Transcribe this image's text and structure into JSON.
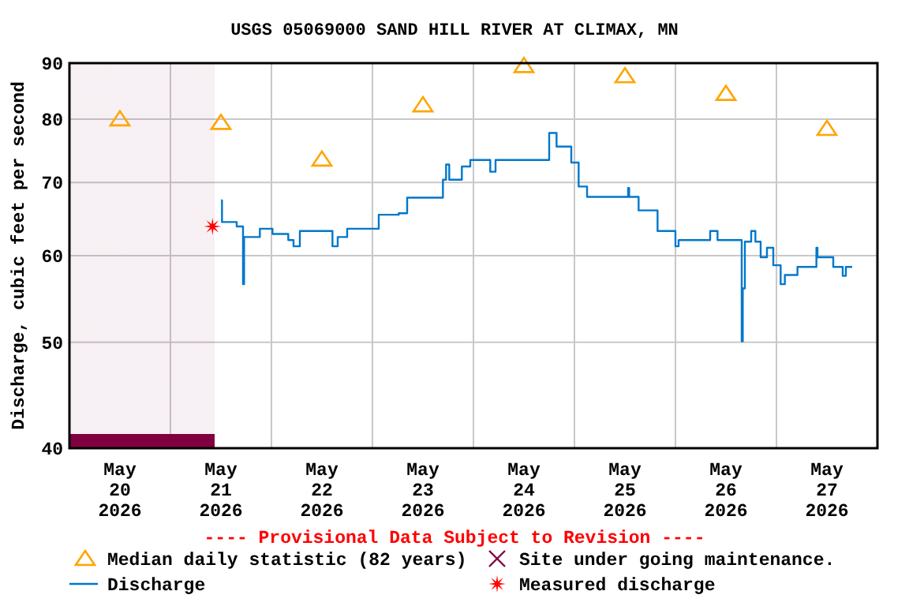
{
  "chart_data": {
    "type": "line",
    "title": "USGS 05069000 SAND HILL RIVER AT CLIMAX, MN",
    "ylabel": "Discharge, cubic feet per second",
    "annotations": [
      "---- Provisional Data Subject to Revision ----"
    ],
    "log": "y",
    "grid": true,
    "legend": "bottom",
    "xlim": [
      "2026-05-20T00:00",
      "2026-05-28T00:00"
    ],
    "xticks": [
      {
        "value": "2026-05-20T12:00",
        "label": "May\n20\n2026"
      },
      {
        "value": "2026-05-21T12:00",
        "label": "May\n21\n2026"
      },
      {
        "value": "2026-05-22T12:00",
        "label": "May\n22\n2026"
      },
      {
        "value": "2026-05-23T12:00",
        "label": "May\n23\n2026"
      },
      {
        "value": "2026-05-24T12:00",
        "label": "May\n24\n2026"
      },
      {
        "value": "2026-05-25T12:00",
        "label": "May\n25\n2026"
      },
      {
        "value": "2026-05-26T12:00",
        "label": "May\n26\n2026"
      },
      {
        "value": "2026-05-27T12:00",
        "label": "May\n27\n2026"
      },
      {
        "value": "2026-05-21T00:00",
        "label": null
      },
      {
        "value": "2026-05-22T00:00",
        "label": null
      },
      {
        "value": "2026-05-23T00:00",
        "label": null
      },
      {
        "value": "2026-05-24T00:00",
        "label": null
      },
      {
        "value": "2026-05-25T00:00",
        "label": null
      },
      {
        "value": "2026-05-26T00:00",
        "label": null
      },
      {
        "value": "2026-05-27T00:00",
        "label": null
      }
    ],
    "ylim": [
      40,
      90
    ],
    "yticks": [
      40,
      50,
      60,
      70,
      80,
      90
    ],
    "bands": [
      {
        "axis": "x",
        "from": "2026-05-20T00:00",
        "to": "2026-05-21T10:30",
        "label": "Site under going maintenance.",
        "color": "#800040"
      }
    ],
    "series": [
      {
        "name": "Median daily statistic (82 years)",
        "type": "scatter",
        "marker": "triangle",
        "color": "#ffa500",
        "x": [
          "2026-05-20T12:00",
          "2026-05-21T12:00",
          "2026-05-22T12:00",
          "2026-05-23T12:00",
          "2026-05-24T12:00",
          "2026-05-25T12:00",
          "2026-05-26T12:00",
          "2026-05-27T12:00"
        ],
        "values": [
          80,
          79.4,
          73.5,
          82.4,
          89.5,
          87.6,
          84.4,
          78.4
        ]
      },
      {
        "name": "Discharge",
        "type": "step",
        "marker": "none",
        "line_style": "solid",
        "color": "#0077cc",
        "x": [
          "2026-05-21T12:00",
          "2026-05-21T12:15",
          "2026-05-21T15:45",
          "2026-05-21T17:15",
          "2026-05-21T17:30",
          "2026-05-21T21:15",
          "2026-05-22T00:15",
          "2026-05-22T04:00",
          "2026-05-22T05:15",
          "2026-05-22T06:45",
          "2026-05-22T12:45",
          "2026-05-22T14:30",
          "2026-05-22T15:45",
          "2026-05-22T18:00",
          "2026-05-23T00:00",
          "2026-05-23T01:30",
          "2026-05-23T06:15",
          "2026-05-23T08:15",
          "2026-05-23T16:00",
          "2026-05-23T16:45",
          "2026-05-23T17:30",
          "2026-05-23T18:15",
          "2026-05-23T21:15",
          "2026-05-23T23:15",
          "2026-05-24T04:00",
          "2026-05-24T05:15",
          "2026-05-24T15:00",
          "2026-05-24T18:00",
          "2026-05-24T19:45",
          "2026-05-24T23:15",
          "2026-05-25T01:00",
          "2026-05-25T03:00",
          "2026-05-25T12:15",
          "2026-05-25T12:45",
          "2026-05-25T13:00",
          "2026-05-25T15:15",
          "2026-05-25T19:45",
          "2026-05-26T00:00",
          "2026-05-26T00:45",
          "2026-05-26T08:15",
          "2026-05-26T10:00",
          "2026-05-26T15:00",
          "2026-05-26T15:45",
          "2026-05-26T16:00",
          "2026-05-26T16:30",
          "2026-05-26T18:00",
          "2026-05-26T19:00",
          "2026-05-26T20:15",
          "2026-05-26T21:45",
          "2026-05-26T23:15",
          "2026-05-27T01:00",
          "2026-05-27T02:00",
          "2026-05-27T04:30",
          "2026-05-27T05:00",
          "2026-05-27T08:00",
          "2026-05-27T09:30",
          "2026-05-27T09:45",
          "2026-05-27T13:00",
          "2026-05-27T13:30",
          "2026-05-27T15:30",
          "2026-05-27T15:45",
          "2026-05-27T16:30",
          "2026-05-27T18:00"
        ],
        "values": [
          67.4,
          64.4,
          63.8,
          56.5,
          62.4,
          63.5,
          62.8,
          62.0,
          61.2,
          63.2,
          63.2,
          61.2,
          62.4,
          63.5,
          63.5,
          65.4,
          65.6,
          67.8,
          67.8,
          70.4,
          72.7,
          70.4,
          72.4,
          73.4,
          71.6,
          73.4,
          73.4,
          77.7,
          75.5,
          73.0,
          69.4,
          67.9,
          67.9,
          69.2,
          67.9,
          66.0,
          63.2,
          61.2,
          62.0,
          63.2,
          62.0,
          62.0,
          50.1,
          56.0,
          61.8,
          63.2,
          61.8,
          59.8,
          61.0,
          58.8,
          56.5,
          57.6,
          57.6,
          58.6,
          58.6,
          61.0,
          59.8,
          59.8,
          58.6,
          58.6,
          57.5,
          58.6,
          58.6
        ]
      },
      {
        "name": "Measured discharge",
        "type": "scatter",
        "marker": "star",
        "color": "#ff0000",
        "x": [
          "2026-05-21T10:00"
        ],
        "values": [
          63.8
        ]
      }
    ]
  }
}
